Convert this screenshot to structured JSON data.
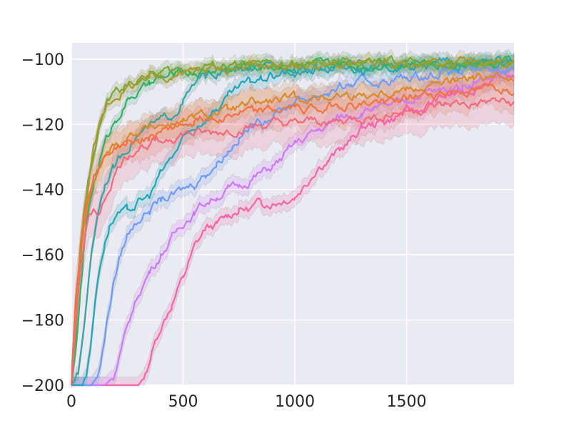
{
  "chart_data": {
    "type": "line",
    "title": "",
    "xlabel": "",
    "ylabel": "",
    "xlim": [
      0,
      1980
    ],
    "ylim": [
      -200,
      -95
    ],
    "grid": true,
    "background": "#EAEAF2",
    "grid_color": "#ffffff",
    "x_ticks": [
      {
        "value": 0,
        "label": "0"
      },
      {
        "value": 500,
        "label": "500"
      },
      {
        "value": 1000,
        "label": "1000"
      },
      {
        "value": 1500,
        "label": "1500"
      }
    ],
    "y_ticks": [
      {
        "value": -100,
        "label": "−100"
      },
      {
        "value": -120,
        "label": "−120"
      },
      {
        "value": -140,
        "label": "−140"
      },
      {
        "value": -160,
        "label": "−160"
      },
      {
        "value": -180,
        "label": "−180"
      },
      {
        "value": -200,
        "label": "−200"
      }
    ],
    "series": [
      {
        "color": "#F365A6",
        "band": 2.5,
        "x": [
          0,
          300,
          330,
          360,
          400,
          450,
          500,
          550,
          600,
          650,
          700,
          750,
          800,
          850,
          900,
          950,
          1000,
          1050,
          1100,
          1150,
          1200,
          1250,
          1300,
          1350,
          1400,
          1450,
          1500,
          1550,
          1600,
          1650,
          1700,
          1750,
          1800,
          1850,
          1900,
          1950,
          1980
        ],
        "y": [
          -200,
          -200,
          -197,
          -190,
          -182,
          -175,
          -167,
          -158,
          -152,
          -151,
          -148,
          -146,
          -146,
          -144,
          -144,
          -143,
          -142,
          -138,
          -133,
          -131,
          -128,
          -125,
          -121,
          -120,
          -119,
          -118,
          -116,
          -116,
          -114,
          -112,
          -111,
          -110,
          -109,
          -107,
          -106,
          -105,
          -105
        ]
      },
      {
        "color": "#CC7AF4",
        "band": 2.5,
        "x": [
          0,
          150,
          180,
          200,
          230,
          260,
          300,
          350,
          400,
          450,
          500,
          550,
          600,
          650,
          700,
          750,
          800,
          850,
          900,
          950,
          1000,
          1050,
          1100,
          1150,
          1200,
          1250,
          1300,
          1350,
          1400,
          1450,
          1500,
          1550,
          1600,
          1650,
          1700,
          1750,
          1800,
          1850,
          1900,
          1950,
          1980
        ],
        "y": [
          -200,
          -200,
          -198,
          -195,
          -188,
          -180,
          -172,
          -165,
          -160,
          -155,
          -150,
          -147,
          -144,
          -142,
          -140,
          -139,
          -137,
          -135,
          -133,
          -130,
          -126,
          -124,
          -122,
          -120,
          -118,
          -117,
          -116,
          -115,
          -115,
          -114,
          -113,
          -111,
          -110,
          -110,
          -109,
          -108,
          -107,
          -106,
          -105,
          -104,
          -104
        ]
      },
      {
        "color": "#6F9BF4",
        "band": 2.5,
        "x": [
          0,
          90,
          110,
          130,
          150,
          170,
          190,
          220,
          250,
          300,
          350,
          400,
          450,
          500,
          550,
          600,
          650,
          700,
          750,
          800,
          850,
          900,
          950,
          1000,
          1050,
          1100,
          1150,
          1200,
          1250,
          1300,
          1350,
          1400,
          1450,
          1500,
          1550,
          1600,
          1650,
          1700,
          1750,
          1800,
          1850,
          1900,
          1950,
          1980
        ],
        "y": [
          -200,
          -200,
          -198,
          -193,
          -185,
          -176,
          -168,
          -160,
          -154,
          -149,
          -146,
          -143,
          -142,
          -140,
          -138,
          -135,
          -132,
          -128,
          -124,
          -121,
          -119,
          -117,
          -115,
          -113,
          -112,
          -111,
          -110,
          -109,
          -108,
          -107,
          -107,
          -107,
          -106,
          -106,
          -105,
          -105,
          -104,
          -104,
          -104,
          -104,
          -103,
          -103,
          -103,
          -103
        ]
      },
      {
        "color": "#22A6B8",
        "band": 2.5,
        "x": [
          0,
          50,
          70,
          90,
          110,
          130,
          150,
          170,
          200,
          250,
          300,
          350,
          400,
          450,
          500,
          550,
          600,
          650,
          700,
          750,
          800,
          850,
          900,
          950,
          1000,
          1100,
          1200,
          1300,
          1400,
          1500,
          1600,
          1700,
          1800,
          1900,
          1980
        ],
        "y": [
          -200,
          -200,
          -195,
          -185,
          -172,
          -162,
          -156,
          -151,
          -148,
          -147,
          -144,
          -142,
          -135,
          -130,
          -125,
          -121,
          -118,
          -115,
          -112,
          -109,
          -107,
          -106,
          -105,
          -104,
          -104,
          -103,
          -103,
          -103,
          -102,
          -102,
          -102,
          -102,
          -102,
          -102,
          -102
        ]
      },
      {
        "color": "#3BA3A0",
        "band": 2,
        "x": [
          0,
          30,
          50,
          70,
          90,
          110,
          130,
          150,
          170,
          190,
          210,
          230,
          260,
          300,
          350,
          400,
          450,
          500,
          550,
          600,
          700,
          800,
          900,
          1000,
          1100,
          1200,
          1300,
          1400,
          1500,
          1600,
          1700,
          1800,
          1900,
          1980
        ],
        "y": [
          -200,
          -197,
          -186,
          -172,
          -160,
          -150,
          -143,
          -138,
          -135,
          -133,
          -131,
          -129,
          -126,
          -123,
          -121,
          -119,
          -117,
          -113,
          -108,
          -105,
          -104,
          -103,
          -103,
          -103,
          -103,
          -102,
          -102,
          -102,
          -102,
          -102,
          -101,
          -101,
          -101,
          -101
        ]
      },
      {
        "color": "#33B068",
        "band": 2,
        "x": [
          0,
          20,
          40,
          60,
          80,
          100,
          120,
          140,
          160,
          180,
          200,
          230,
          260,
          300,
          350,
          400,
          450,
          500,
          550,
          600,
          650,
          700,
          800,
          900,
          1000,
          1100,
          1200,
          1300,
          1400,
          1500,
          1600,
          1700,
          1800,
          1900,
          1980
        ],
        "y": [
          -200,
          -190,
          -172,
          -156,
          -145,
          -138,
          -133,
          -128,
          -124,
          -121,
          -118,
          -115,
          -112,
          -110,
          -108,
          -106,
          -105,
          -104,
          -104,
          -104,
          -103,
          -103,
          -102,
          -102,
          -102,
          -102,
          -102,
          -102,
          -101,
          -101,
          -101,
          -101,
          -101,
          -101,
          -101
        ]
      },
      {
        "color": "#77A836",
        "band": 2,
        "x": [
          0,
          20,
          40,
          60,
          80,
          100,
          130,
          160,
          200,
          250,
          300,
          350,
          400,
          450,
          500,
          550,
          600,
          700,
          800,
          900,
          1000,
          1100,
          1200,
          1300,
          1400,
          1500,
          1600,
          1700,
          1800,
          1900,
          1980
        ],
        "y": [
          -200,
          -185,
          -163,
          -147,
          -136,
          -128,
          -120,
          -113,
          -110,
          -108,
          -106,
          -105,
          -104,
          -104,
          -103,
          -103,
          -102,
          -102,
          -102,
          -102,
          -102,
          -102,
          -101,
          -101,
          -101,
          -101,
          -101,
          -101,
          -101,
          -101,
          -101
        ]
      },
      {
        "color": "#A69A2E",
        "band": 2,
        "x": [
          0,
          20,
          40,
          60,
          80,
          100,
          130,
          160,
          200,
          250,
          300,
          350,
          400,
          450,
          500,
          550,
          600,
          700,
          800,
          900,
          1000,
          1100,
          1200,
          1300,
          1400,
          1500,
          1600,
          1700,
          1800,
          1900,
          1980
        ],
        "y": [
          -200,
          -178,
          -158,
          -145,
          -136,
          -128,
          -120,
          -114,
          -111,
          -109,
          -107,
          -106,
          -105,
          -105,
          -104,
          -104,
          -103,
          -103,
          -102,
          -102,
          -102,
          -102,
          -102,
          -102,
          -102,
          -102,
          -101,
          -101,
          -101,
          -101,
          -101
        ]
      },
      {
        "color": "#D88A2C",
        "band": 4,
        "x": [
          0,
          20,
          40,
          60,
          80,
          100,
          130,
          160,
          200,
          250,
          300,
          350,
          400,
          450,
          500,
          550,
          600,
          700,
          800,
          900,
          1000,
          1100,
          1200,
          1300,
          1400,
          1500,
          1600,
          1700,
          1800,
          1900,
          1980
        ],
        "y": [
          -200,
          -175,
          -160,
          -150,
          -143,
          -138,
          -133,
          -129,
          -126,
          -124,
          -122,
          -121,
          -120,
          -120,
          -119,
          -118,
          -117,
          -116,
          -114,
          -113,
          -112,
          -112,
          -111,
          -111,
          -110,
          -109,
          -108,
          -107,
          -106,
          -106,
          -105
        ]
      },
      {
        "color": "#F0743F",
        "band": 6,
        "x": [
          0,
          20,
          40,
          60,
          80,
          100,
          130,
          160,
          200,
          250,
          300,
          350,
          400,
          450,
          500,
          550,
          600,
          700,
          800,
          900,
          1000,
          1100,
          1200,
          1300,
          1400,
          1500,
          1600,
          1700,
          1800,
          1900,
          1980
        ],
        "y": [
          -200,
          -172,
          -157,
          -147,
          -140,
          -136,
          -132,
          -129,
          -127,
          -126,
          -125,
          -124,
          -122,
          -121,
          -120,
          -119,
          -118,
          -117,
          -116,
          -116,
          -115,
          -115,
          -114,
          -114,
          -113,
          -112,
          -111,
          -110,
          -110,
          -109,
          -109
        ]
      },
      {
        "color": "#F36A7E",
        "band": 7,
        "x": [
          0,
          20,
          40,
          60,
          80,
          100,
          130,
          160,
          190,
          220,
          260,
          300,
          350,
          400,
          450,
          500,
          550,
          600,
          700,
          800,
          900,
          1000,
          1100,
          1200,
          1300,
          1400,
          1500,
          1600,
          1700,
          1800,
          1900,
          1980
        ],
        "y": [
          -200,
          -180,
          -165,
          -155,
          -149,
          -146,
          -147,
          -141,
          -136,
          -132,
          -129,
          -127,
          -126,
          -125,
          -124,
          -123,
          -123,
          -123,
          -122,
          -121,
          -120,
          -120,
          -119,
          -119,
          -118,
          -117,
          -116,
          -115,
          -114,
          -114,
          -113,
          -114
        ]
      }
    ]
  }
}
